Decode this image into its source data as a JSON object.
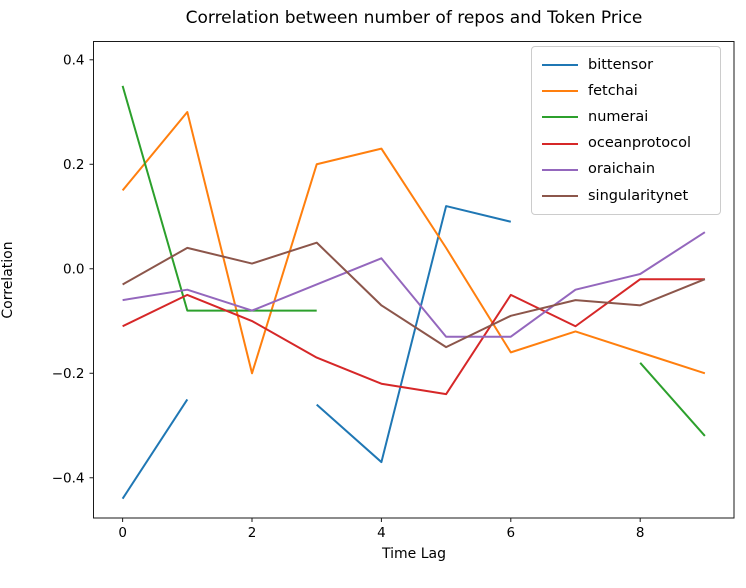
{
  "chart_data": {
    "type": "line",
    "title": "Correlation between number of repos and Token Price",
    "xlabel": "Time Lag",
    "ylabel": "Correlation",
    "x": [
      0,
      1,
      2,
      3,
      4,
      5,
      6,
      7,
      8,
      9
    ],
    "series": [
      {
        "name": "bittensor",
        "color": "#1f77b4",
        "values": [
          -0.44,
          -0.25,
          null,
          -0.26,
          -0.37,
          0.12,
          0.09,
          null,
          null,
          null
        ]
      },
      {
        "name": "fetchai",
        "color": "#ff7f0e",
        "values": [
          0.15,
          0.3,
          -0.2,
          0.2,
          0.23,
          0.04,
          -0.16,
          -0.12,
          -0.16,
          -0.2
        ]
      },
      {
        "name": "numerai",
        "color": "#2ca02c",
        "values": [
          0.35,
          -0.08,
          -0.08,
          -0.08,
          null,
          null,
          null,
          null,
          -0.18,
          -0.32
        ]
      },
      {
        "name": "oceanprotocol",
        "color": "#d62728",
        "values": [
          -0.11,
          -0.05,
          -0.1,
          -0.17,
          -0.22,
          -0.24,
          -0.05,
          -0.11,
          -0.02,
          -0.02
        ]
      },
      {
        "name": "oraichain",
        "color": "#9467bd",
        "values": [
          -0.06,
          -0.04,
          -0.08,
          -0.03,
          0.02,
          -0.13,
          -0.13,
          -0.04,
          -0.01,
          0.07
        ]
      },
      {
        "name": "singularitynet",
        "color": "#8c564b",
        "values": [
          -0.03,
          0.04,
          0.01,
          0.05,
          -0.07,
          -0.15,
          -0.09,
          -0.06,
          -0.07,
          -0.02
        ]
      }
    ],
    "xlim": [
      -0.45,
      9.45
    ],
    "ylim": [
      -0.477,
      0.435
    ],
    "xticks": {
      "values": [
        0,
        2,
        4,
        6,
        8
      ],
      "labels": [
        "0",
        "2",
        "4",
        "6",
        "8"
      ]
    },
    "yticks": {
      "values": [
        0.4,
        0.2,
        0.0,
        -0.2,
        -0.4
      ],
      "labels": [
        "0.4",
        "0.2",
        "0.0",
        "−0.2",
        "−0.4"
      ]
    },
    "grid": false,
    "legend_position": "upper right",
    "line_width": 2,
    "spine_color": "#1a1a1a"
  }
}
